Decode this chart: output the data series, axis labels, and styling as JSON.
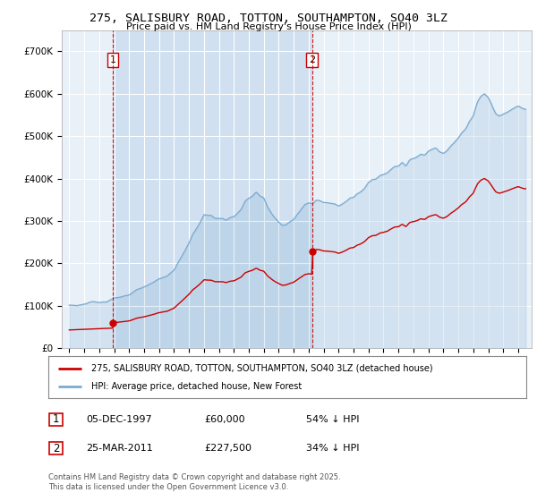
{
  "title1": "275, SALISBURY ROAD, TOTTON, SOUTHAMPTON, SO40 3LZ",
  "title2": "Price paid vs. HM Land Registry's House Price Index (HPI)",
  "bg_color": "#e8f0f8",
  "shade_color": "#d0e0f0",
  "hpi_color": "#7aaad0",
  "price_color": "#cc0000",
  "vline_color": "#cc0000",
  "legend_line1": "275, SALISBURY ROAD, TOTTON, SOUTHAMPTON, SO40 3LZ (detached house)",
  "legend_line2": "HPI: Average price, detached house, New Forest",
  "footer_line1": "Contains HM Land Registry data © Crown copyright and database right 2025.",
  "footer_line2": "This data is licensed under the Open Government Licence v3.0.",
  "note1_date": "05-DEC-1997",
  "note1_price": "£60,000",
  "note1_hpi": "54% ↓ HPI",
  "note2_date": "25-MAR-2011",
  "note2_price": "£227,500",
  "note2_hpi": "34% ↓ HPI",
  "sale1_x": 1997.92,
  "sale1_y": 60000,
  "sale2_x": 2011.23,
  "sale2_y": 227500,
  "ylim": [
    0,
    750000
  ],
  "xlim_start": 1994.5,
  "xlim_end": 2025.9
}
